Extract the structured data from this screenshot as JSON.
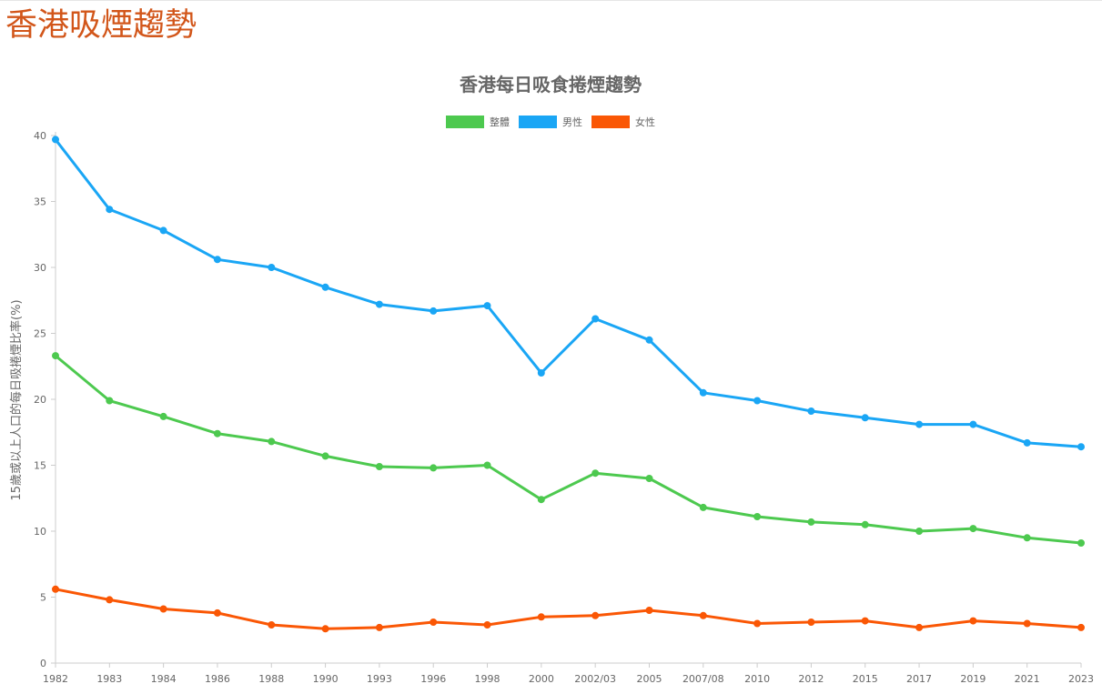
{
  "page": {
    "title": "香港吸煙趨勢"
  },
  "colors": {
    "overall": "#4dc94f",
    "male": "#1aa6f5",
    "female": "#fa5705",
    "title_accent": "#d2561a"
  },
  "chart_data": {
    "type": "line",
    "title": "香港每日吸食捲煙趨勢",
    "xlabel": "",
    "ylabel": "15歲或以上人口的每日吸捲煙比率(%)",
    "ylim": [
      0,
      40
    ],
    "yticks": [
      0,
      5,
      10,
      15,
      20,
      25,
      30,
      35,
      40
    ],
    "grid": false,
    "legend_position": "top-center",
    "categories": [
      "1982",
      "1983",
      "1984",
      "1986",
      "1988",
      "1990",
      "1993",
      "1996",
      "1998",
      "2000",
      "2002/03",
      "2005",
      "2007/08",
      "2010",
      "2012",
      "2015",
      "2017",
      "2019",
      "2021",
      "2023"
    ],
    "series": [
      {
        "name": "整體",
        "color": "#4dc94f",
        "values": [
          23.3,
          19.9,
          18.7,
          17.4,
          16.8,
          15.7,
          14.9,
          14.8,
          15.0,
          12.4,
          14.4,
          14.0,
          11.8,
          11.1,
          10.7,
          10.5,
          10.0,
          10.2,
          9.5,
          9.1
        ]
      },
      {
        "name": "男性",
        "color": "#1aa6f5",
        "values": [
          39.7,
          34.4,
          32.8,
          30.6,
          30.0,
          28.5,
          27.2,
          26.7,
          27.1,
          22.0,
          26.1,
          24.5,
          20.5,
          19.9,
          19.1,
          18.6,
          18.1,
          18.1,
          16.7,
          16.4
        ]
      },
      {
        "name": "女性",
        "color": "#fa5705",
        "values": [
          5.6,
          4.8,
          4.1,
          3.8,
          2.9,
          2.6,
          2.7,
          3.1,
          2.9,
          3.5,
          3.6,
          4.0,
          3.6,
          3.0,
          3.1,
          3.2,
          2.7,
          3.2,
          3.0,
          2.7
        ]
      }
    ]
  }
}
